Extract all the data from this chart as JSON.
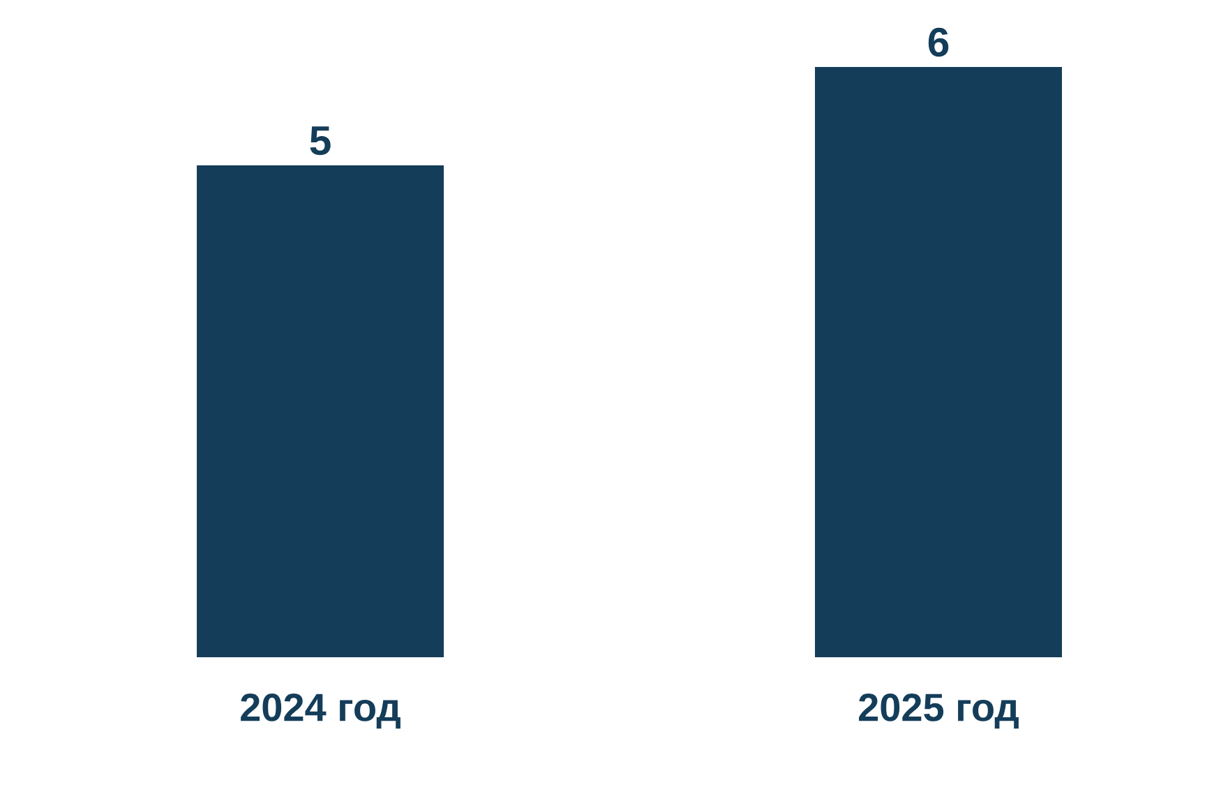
{
  "chart_data": {
    "type": "bar",
    "categories": [
      "2024 год",
      "2025 год"
    ],
    "values": [
      5,
      6
    ],
    "color": "#143d59",
    "data_labels": true
  }
}
